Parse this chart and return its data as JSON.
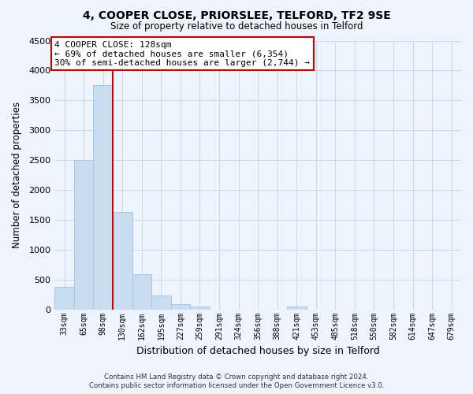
{
  "title": "4, COOPER CLOSE, PRIORSLEE, TELFORD, TF2 9SE",
  "subtitle": "Size of property relative to detached houses in Telford",
  "xlabel": "Distribution of detached houses by size in Telford",
  "ylabel": "Number of detached properties",
  "bar_labels": [
    "33sqm",
    "65sqm",
    "98sqm",
    "130sqm",
    "162sqm",
    "195sqm",
    "227sqm",
    "259sqm",
    "291sqm",
    "324sqm",
    "356sqm",
    "388sqm",
    "421sqm",
    "453sqm",
    "485sqm",
    "518sqm",
    "550sqm",
    "582sqm",
    "614sqm",
    "647sqm",
    "679sqm"
  ],
  "bar_values": [
    380,
    2500,
    3750,
    1640,
    600,
    240,
    100,
    60,
    0,
    0,
    0,
    0,
    50,
    0,
    0,
    0,
    0,
    0,
    0,
    0,
    0
  ],
  "bar_color": "#c8ddf0",
  "bar_edge_color": "#a8c8e8",
  "vline_color": "#cc0000",
  "annotation_line1": "4 COOPER CLOSE: 128sqm",
  "annotation_line2": "← 69% of detached houses are smaller (6,354)",
  "annotation_line3": "30% of semi-detached houses are larger (2,744) →",
  "annotation_box_color": "#ffffff",
  "annotation_box_edge": "#cc0000",
  "ylim": [
    0,
    4500
  ],
  "yticks": [
    0,
    500,
    1000,
    1500,
    2000,
    2500,
    3000,
    3500,
    4000,
    4500
  ],
  "footer_line1": "Contains HM Land Registry data © Crown copyright and database right 2024.",
  "footer_line2": "Contains public sector information licensed under the Open Government Licence v3.0.",
  "bg_color": "#eef4fb",
  "plot_bg_color": "#eef4fb",
  "grid_color": "#c8d8ec"
}
